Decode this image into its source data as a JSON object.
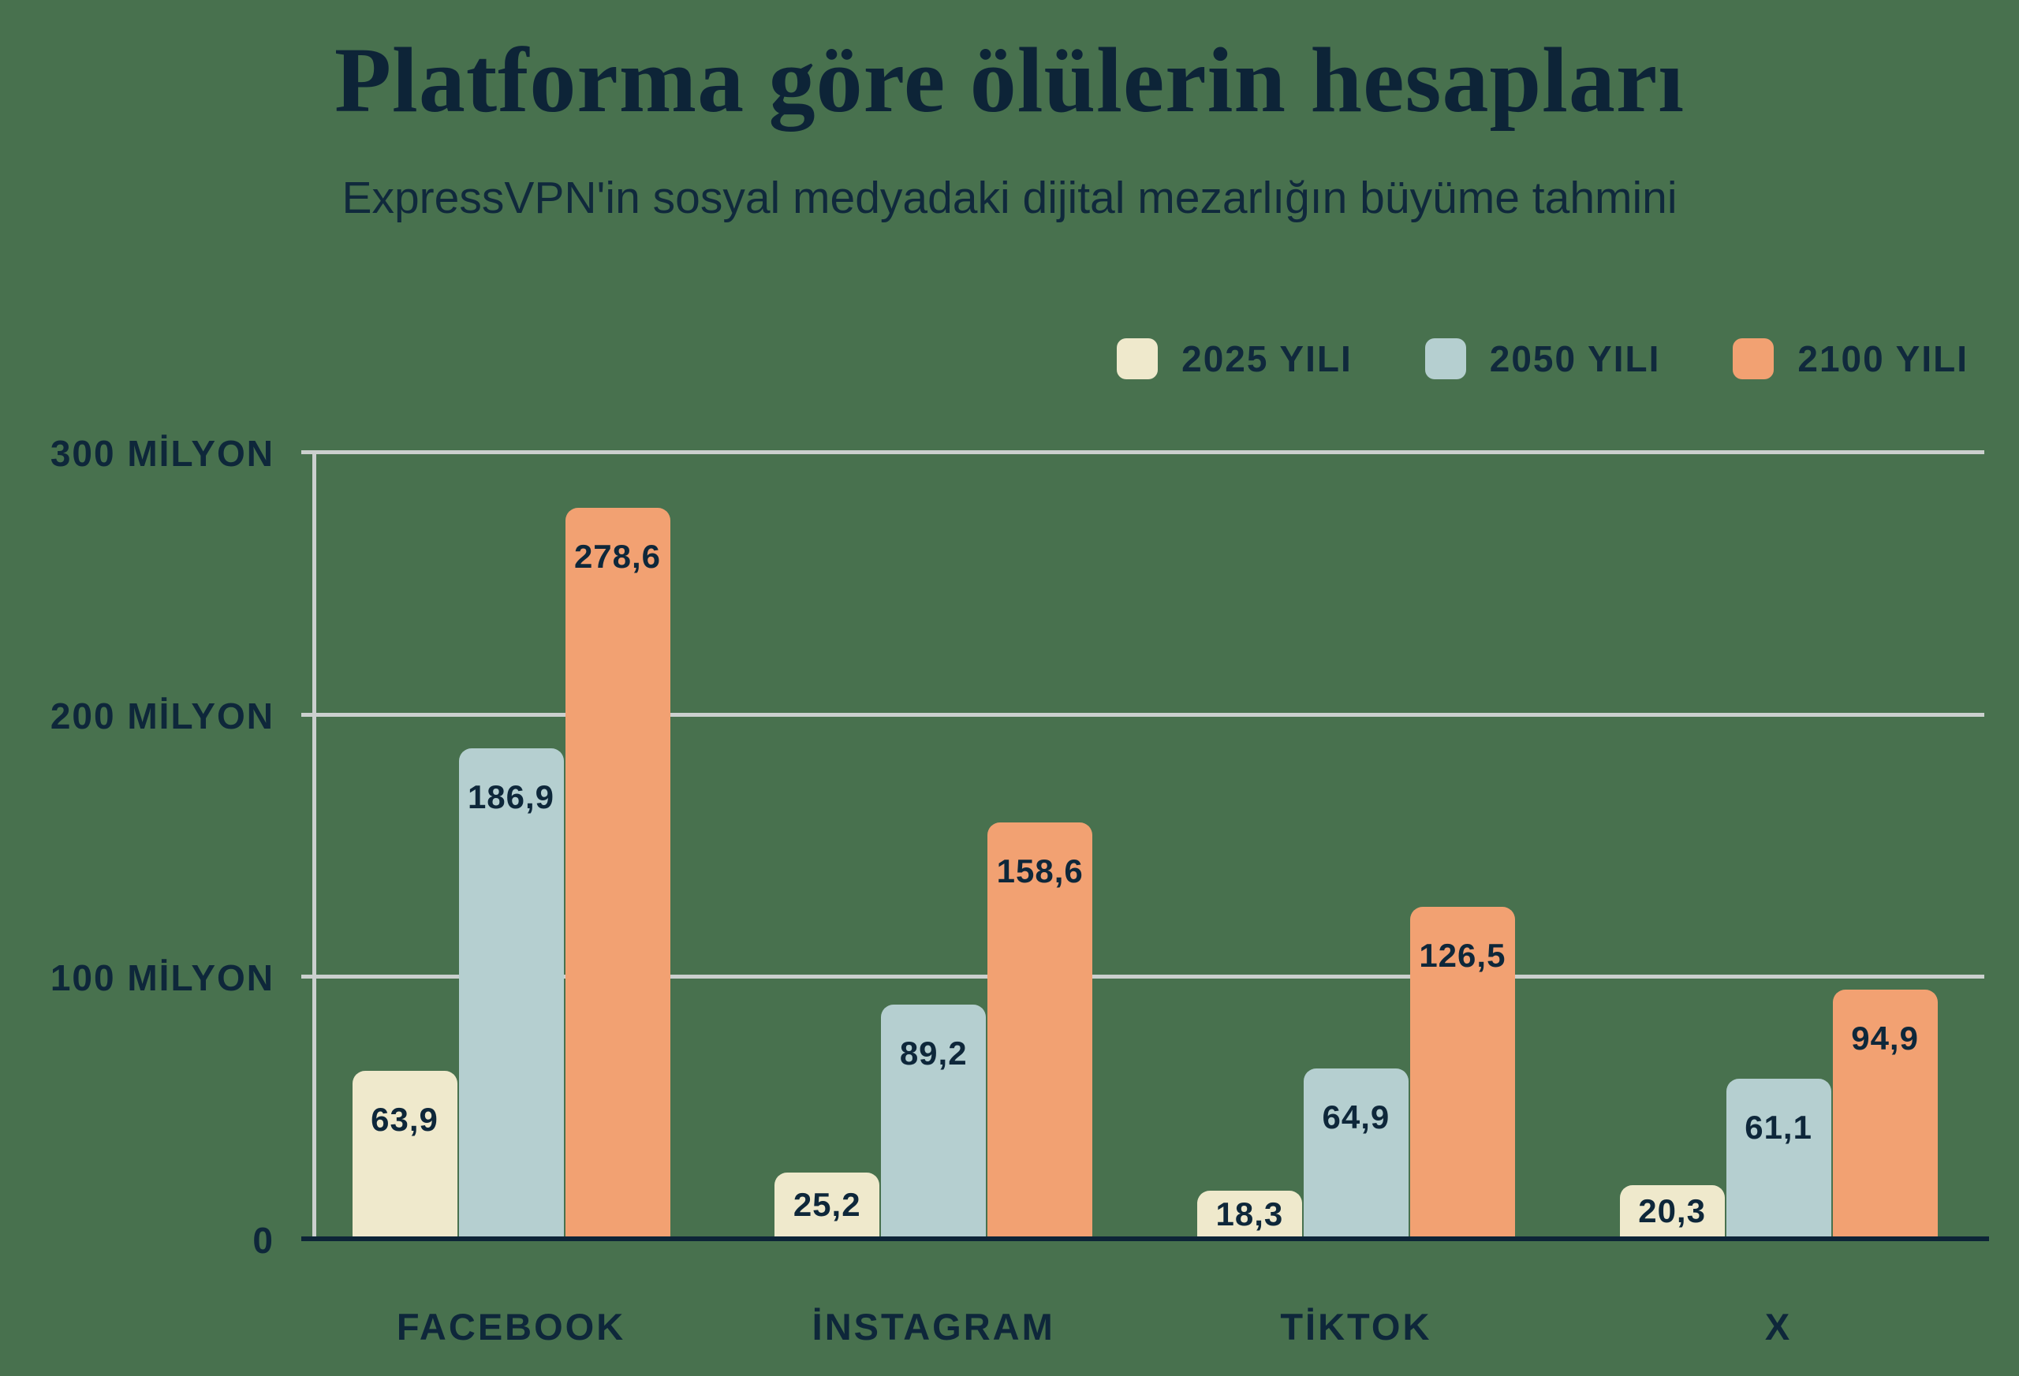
{
  "header": {
    "title": "Platforma göre ölülerin hesapları",
    "subtitle": "ExpressVPN'in sosyal medyadaki dijital mezarlığın büyüme tahmini"
  },
  "colors": {
    "background": "#48714e",
    "navy_text": "#0e273a",
    "gridline": "#cbd0ce",
    "baseline": "#0d2437"
  },
  "chart_data": {
    "type": "bar",
    "title": "Platforma göre ölülerin hesapları",
    "subtitle": "ExpressVPN'in sosyal medyadaki dijital mezarlığın büyüme tahmini",
    "categories": [
      "FACEBOOK",
      "İNSTAGRAM",
      "TİKTOK",
      "X"
    ],
    "series": [
      {
        "name": "2025 YILI",
        "color": "#efe9cc",
        "values": [
          63.9,
          25.2,
          18.3,
          20.3
        ],
        "labels": [
          "63,9",
          "25,2",
          "18,3",
          "20,3"
        ]
      },
      {
        "name": "2050 YILI",
        "color": "#b5cfd0",
        "values": [
          186.9,
          89.2,
          64.9,
          61.1
        ],
        "labels": [
          "186,9",
          "89,2",
          "64,9",
          "61,1"
        ]
      },
      {
        "name": "2100 YILI",
        "color": "#f2a172",
        "values": [
          278.6,
          158.6,
          126.5,
          94.9
        ],
        "labels": [
          "278,6",
          "158,6",
          "126,5",
          "94,9"
        ]
      }
    ],
    "y_axis": {
      "ticks": [
        {
          "value": 0,
          "label": "0"
        },
        {
          "value": 100,
          "label": "100 MİLYON"
        },
        {
          "value": 200,
          "label": "200 MİLYON"
        },
        {
          "value": 300,
          "label": "300 MİLYON"
        }
      ]
    },
    "ylim": [
      0,
      300
    ],
    "grid": true,
    "legend_position": "top-right"
  }
}
